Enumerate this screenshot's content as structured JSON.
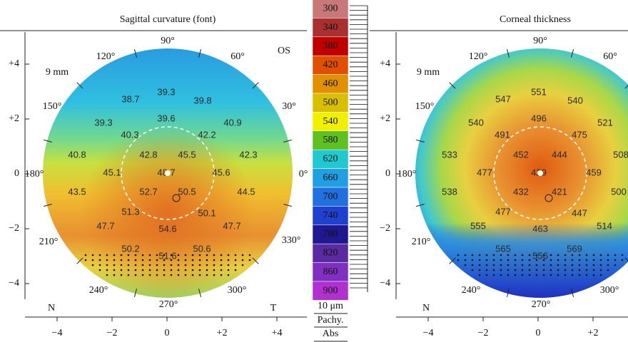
{
  "left_panel": {
    "title": "Sagittal curvature (font)",
    "scale": "9 mm",
    "eye": "OS",
    "nasal": "N",
    "temporal": "T",
    "angles": [
      "90°",
      "60°",
      "30°",
      "0°",
      "330°",
      "300°",
      "270°",
      "240°",
      "210°",
      "180°",
      "150°",
      "120°"
    ],
    "y_ticks": [
      "+4",
      "+2",
      "0",
      "−2",
      "−4"
    ],
    "x_ticks": [
      "−4",
      "−2",
      "0",
      "+2",
      "+4"
    ],
    "map_values": [
      "38.7",
      "39.3",
      "39.8",
      "39.3",
      "39.6",
      "40.9",
      "40.3",
      "42.2",
      "40.8",
      "42.8",
      "45.5",
      "42.3",
      "45.1",
      "48.7",
      "45.6",
      "43.5",
      "52.7",
      "50.5",
      "44.5",
      "51.3",
      "50.1",
      "47.7",
      "54.6",
      "47.7",
      "50.2",
      "50.6",
      "51.6"
    ]
  },
  "color_scale": {
    "values": [
      "300",
      "340",
      "380",
      "420",
      "460",
      "500",
      "540",
      "580",
      "620",
      "660",
      "700",
      "740",
      "780",
      "820",
      "860",
      "900"
    ],
    "colors": [
      "#c87878",
      "#a83030",
      "#c00000",
      "#e05000",
      "#e09000",
      "#d8c000",
      "#f0f000",
      "#60c020",
      "#20c8d0",
      "#20a0e0",
      "#2070e0",
      "#2040d0",
      "#201890",
      "#5a2aa0",
      "#8030c0",
      "#b030d0"
    ],
    "unit": "10 μm",
    "labels": [
      "Pachy.",
      "Abs"
    ]
  },
  "right_panel": {
    "title": "Corneal thickness",
    "scale": "9 mm",
    "nasal": "N",
    "angles": [
      "90°",
      "60°",
      "300°",
      "270°",
      "240°",
      "210°",
      "180°",
      "150°",
      "120°"
    ],
    "y_ticks": [
      "+4",
      "+2",
      "0",
      "−2",
      "−4"
    ],
    "x_ticks": [
      "−4",
      "−2",
      "0",
      "+2"
    ],
    "map_values": [
      "547",
      "551",
      "540",
      "540",
      "496",
      "521",
      "491",
      "475",
      "533",
      "452",
      "444",
      "508",
      "477",
      "429",
      "459",
      "538",
      "432",
      "421",
      "500",
      "477",
      "447",
      "555",
      "463",
      "514",
      "565",
      "569",
      "556"
    ]
  }
}
